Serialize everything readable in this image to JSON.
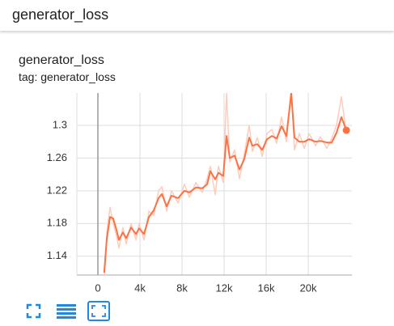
{
  "header": {
    "title": "generator_loss"
  },
  "card": {
    "title": "generator_loss",
    "tag": "tag: generator_loss"
  },
  "chart_data": {
    "type": "line",
    "x": [
      600,
      850,
      1150,
      1460,
      1770,
      2000,
      2380,
      2690,
      3150,
      3620,
      3920,
      4380,
      4850,
      5310,
      5770,
      6080,
      6540,
      7000,
      7620,
      8230,
      8690,
      9310,
      9920,
      10380,
      10690,
      11150,
      11460,
      11920,
      12230,
      12540,
      13000,
      13460,
      13920,
      14380,
      14690,
      15150,
      15620,
      16080,
      16540,
      17000,
      17460,
      17920,
      18380,
      18690,
      19150,
      19620,
      20080,
      20690,
      21150,
      21770,
      22230,
      22690,
      23150,
      23620
    ],
    "series": [
      {
        "color": "#ff7043",
        "values": [
          1.12,
          1.162,
          1.188,
          1.186,
          1.172,
          1.16,
          1.169,
          1.162,
          1.175,
          1.167,
          1.174,
          1.167,
          1.188,
          1.196,
          1.211,
          1.216,
          1.201,
          1.214,
          1.211,
          1.22,
          1.218,
          1.224,
          1.223,
          1.228,
          1.244,
          1.234,
          1.242,
          1.238,
          1.287,
          1.26,
          1.263,
          1.246,
          1.259,
          1.285,
          1.275,
          1.277,
          1.27,
          1.283,
          1.287,
          1.284,
          1.299,
          1.287,
          1.339,
          1.285,
          1.28,
          1.28,
          1.283,
          1.28,
          1.281,
          1.279,
          1.279,
          1.291,
          1.31,
          1.294
        ]
      },
      {
        "color": "#ffccbc",
        "values": [
          1.11,
          1.17,
          1.2,
          1.18,
          1.165,
          1.15,
          1.175,
          1.155,
          1.18,
          1.16,
          1.18,
          1.16,
          1.195,
          1.19,
          1.22,
          1.225,
          1.195,
          1.22,
          1.205,
          1.228,
          1.212,
          1.23,
          1.218,
          1.235,
          1.25,
          1.215,
          1.25,
          1.23,
          1.34,
          1.255,
          1.27,
          1.235,
          1.265,
          1.3,
          1.268,
          1.285,
          1.262,
          1.29,
          1.295,
          1.278,
          1.31,
          1.28,
          1.345,
          1.27,
          1.29,
          1.272,
          1.29,
          1.275,
          1.286,
          1.272,
          1.284,
          1.3,
          1.335,
          1.29
        ]
      }
    ],
    "xlim": [
      -2000,
      24150
    ],
    "xticks": [
      0,
      {
        "value": 4000,
        "label": "4k"
      },
      {
        "value": 8000,
        "label": "8k"
      },
      {
        "value": 12000,
        "label": "12k"
      },
      {
        "value": 16000,
        "label": "16k"
      },
      {
        "value": 20000,
        "label": "20k"
      }
    ],
    "ylim": [
      1.117,
      1.3395
    ],
    "yticks": [
      1.14,
      1.18,
      1.22,
      1.26,
      1.3
    ],
    "grid": true
  }
}
